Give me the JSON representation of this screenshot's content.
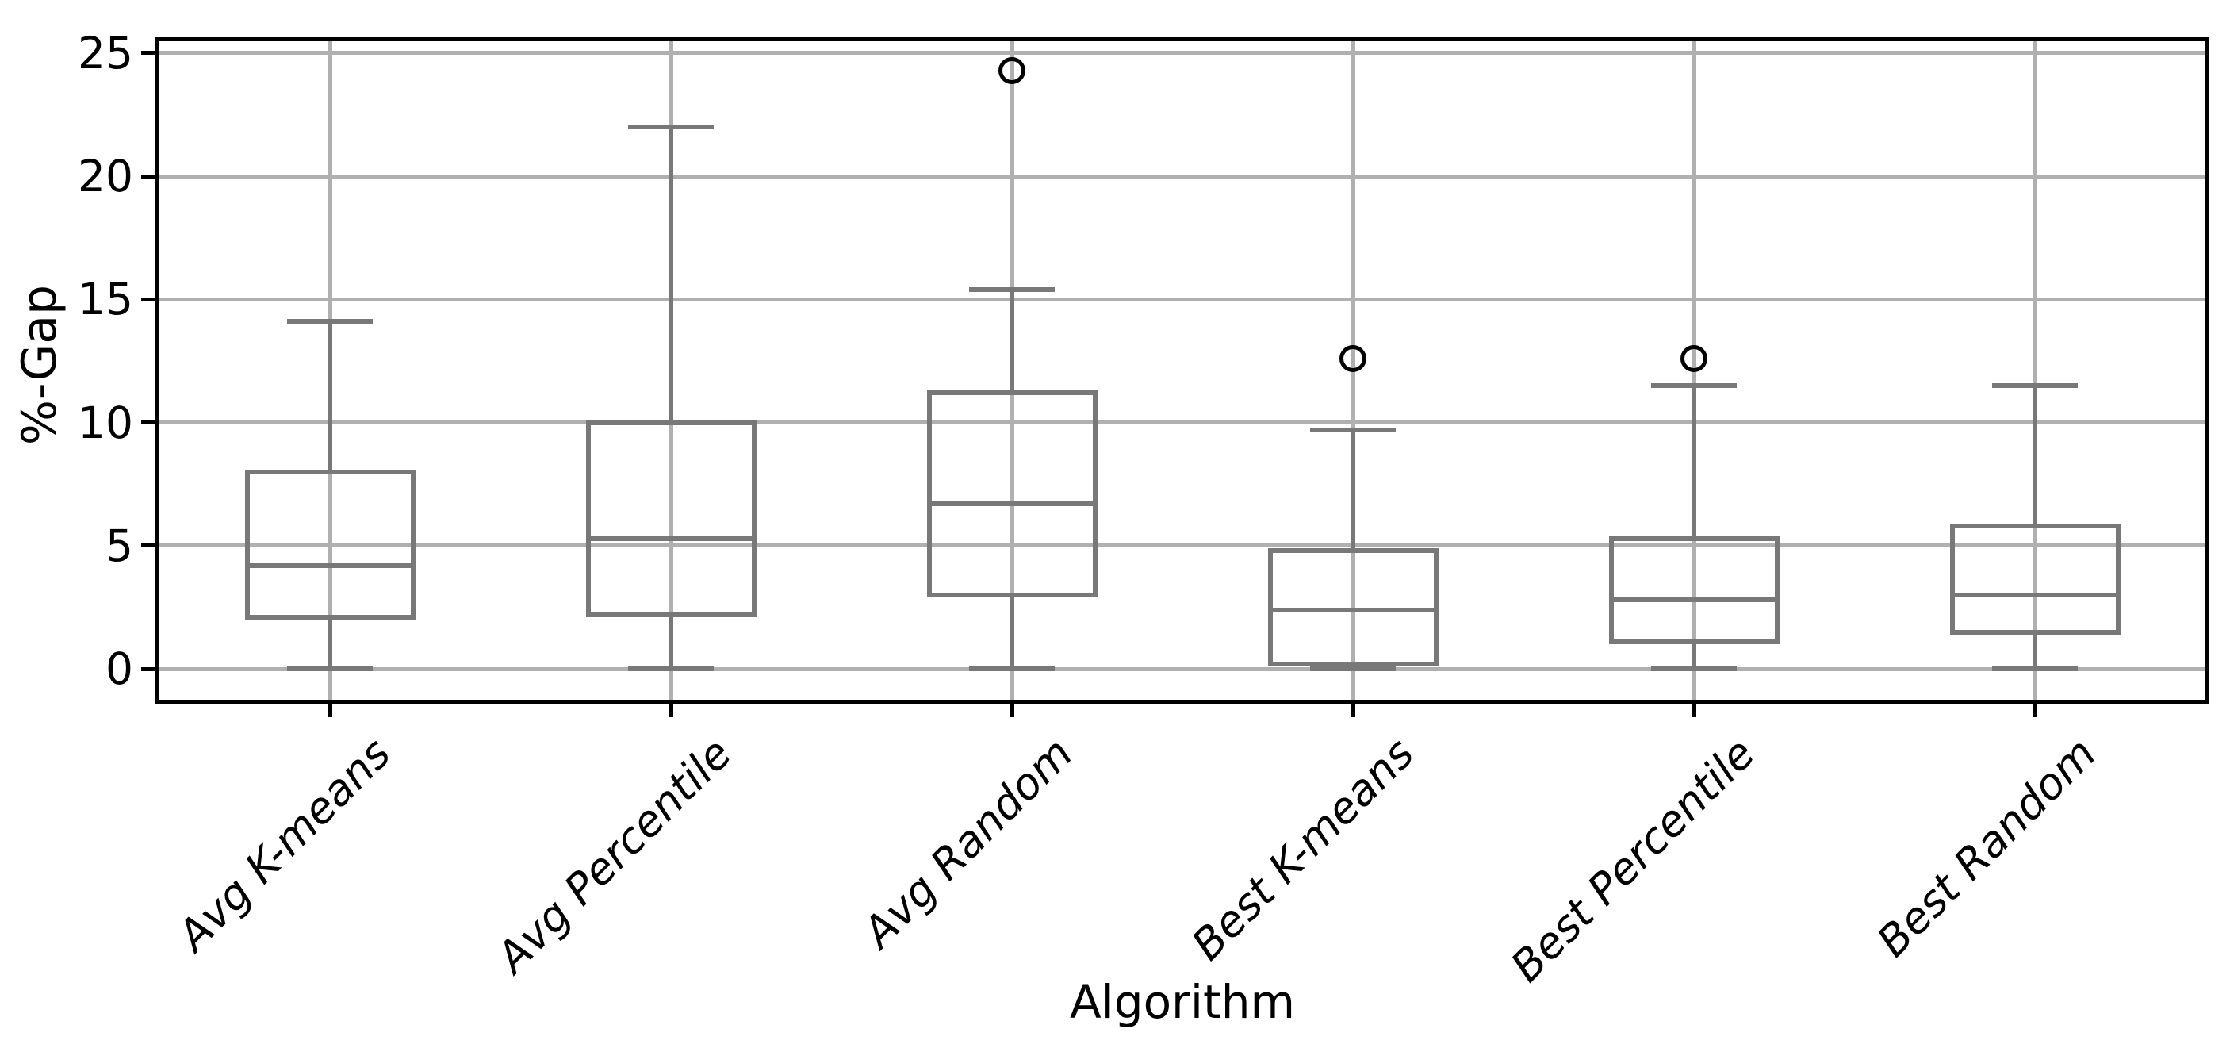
{
  "figure": {
    "background_color": "#ffffff",
    "spine_color": "#000000",
    "grid_color": "#b0b0b0",
    "box_color": "#787878",
    "flier_edge_color": "#000000",
    "tick_label_color": "#000000"
  },
  "chart_data": {
    "type": "boxplot",
    "title": "",
    "xlabel": "Algorithm",
    "ylabel": "%-Gap",
    "grid": true,
    "legend": false,
    "ylim": [
      -1.25,
      25.48
    ],
    "yticks": [
      0,
      5,
      10,
      15,
      20,
      25
    ],
    "ytick_labels": [
      "0",
      "5",
      "10",
      "15",
      "20",
      "25"
    ],
    "categories": [
      "Avg K-means",
      "Avg Percentile",
      "Avg Random",
      "Best K-means",
      "Best Percentile",
      "Best Random"
    ],
    "series": [
      {
        "label": "Avg K-means",
        "whislo": 0.0,
        "q1": 2.0,
        "med": 4.2,
        "q3": 8.1,
        "whishi": 14.1,
        "fliers": []
      },
      {
        "label": "Avg Percentile",
        "whislo": 0.0,
        "q1": 2.1,
        "med": 5.3,
        "q3": 10.1,
        "whishi": 22.0,
        "fliers": []
      },
      {
        "label": "Avg Random",
        "whislo": 0.0,
        "q1": 2.9,
        "med": 6.7,
        "q3": 11.3,
        "whishi": 15.4,
        "fliers": [
          24.3
        ]
      },
      {
        "label": "Best K-means",
        "whislo": 0.0,
        "q1": 0.1,
        "med": 2.4,
        "q3": 4.9,
        "whishi": 9.7,
        "fliers": [
          12.6
        ]
      },
      {
        "label": "Best Percentile",
        "whislo": 0.0,
        "q1": 1.0,
        "med": 2.8,
        "q3": 5.4,
        "whishi": 11.5,
        "fliers": [
          12.6
        ]
      },
      {
        "label": "Best Random",
        "whislo": 0.0,
        "q1": 1.4,
        "med": 3.0,
        "q3": 5.9,
        "whishi": 11.5,
        "fliers": []
      }
    ]
  }
}
